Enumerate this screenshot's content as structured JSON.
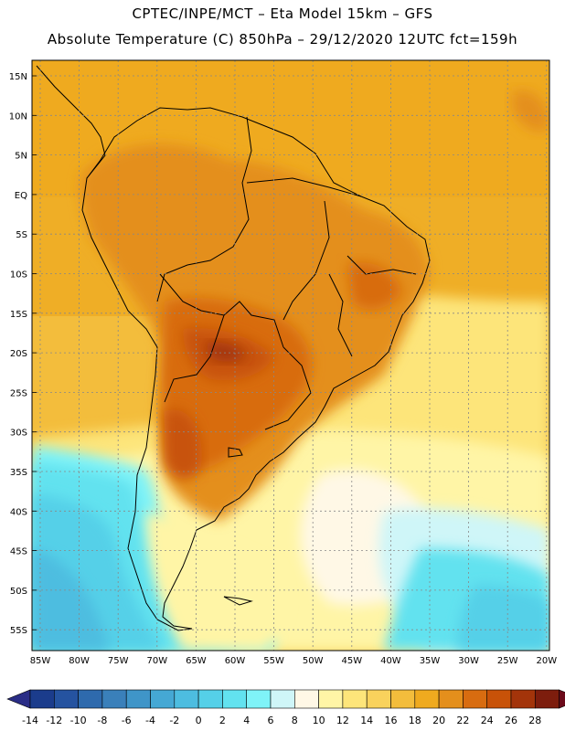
{
  "header": {
    "line1": "CPTEC/INPE/MCT –  Eta Model 15km – GFS",
    "line2": "Absolute Temperature (C) 850hPa – 29/12/2020 12UTC fct=159h"
  },
  "axes": {
    "lat_labels": [
      "15N",
      "10N",
      "5N",
      "EQ",
      "5S",
      "10S",
      "15S",
      "20S",
      "25S",
      "30S",
      "35S",
      "40S",
      "45S",
      "50S",
      "55S"
    ],
    "lon_labels": [
      "85W",
      "80W",
      "75W",
      "70W",
      "65W",
      "60W",
      "55W",
      "50W",
      "45W",
      "40W",
      "35W",
      "30W",
      "25W",
      "20W"
    ]
  },
  "colorbar": {
    "labels": [
      "-14",
      "-12",
      "-10",
      "-8",
      "-6",
      "-4",
      "-2",
      "0",
      "2",
      "4",
      "6",
      "8",
      "10",
      "12",
      "14",
      "16",
      "18",
      "20",
      "22",
      "24",
      "26",
      "28"
    ],
    "colors": [
      "#1b3c8c",
      "#2553a0",
      "#2e6aad",
      "#3a80ba",
      "#3f95c8",
      "#45a8d4",
      "#4dbde0",
      "#55d0e8",
      "#62e2ef",
      "#7ff3f8",
      "#cff6f8",
      "#fff8e6",
      "#fff5a6",
      "#fde57a",
      "#f9d25c",
      "#f3bd3c",
      "#efaa1f",
      "#e48f1c",
      "#d86c10",
      "#c85208",
      "#a3340a",
      "#7d1d0d"
    ],
    "under_color": "#2a2d86",
    "over_color": "#6b0a1a"
  }
}
